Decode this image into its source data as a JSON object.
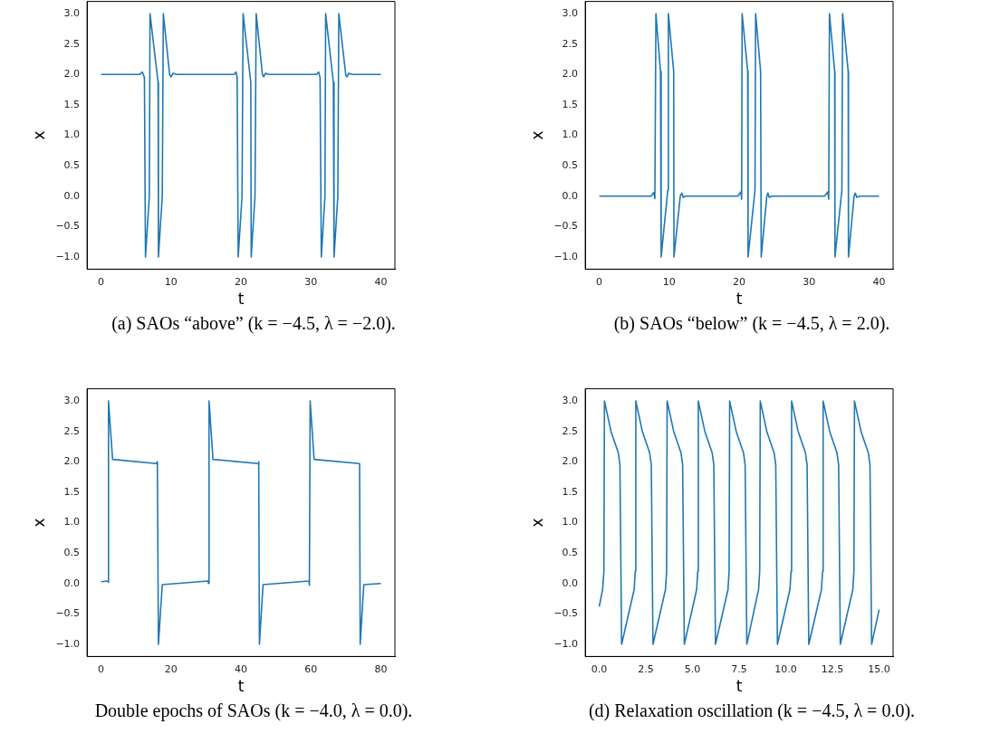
{
  "chart_data": [
    {
      "type": "line",
      "xlabel": "t",
      "ylabel": "x",
      "annotations": [
        "(a) SAOs “above” (k = −4.5, λ = −2.0)."
      ],
      "xlim": [
        -2,
        42
      ],
      "ylim": [
        -1.2,
        3.2
      ],
      "xticks": [
        0,
        10,
        20,
        30,
        40
      ],
      "yticks": [
        {
          "value": -1,
          "label": "−1.0"
        },
        {
          "value": -0.5,
          "label": "−0.5"
        },
        {
          "value": 0,
          "label": "0.0"
        },
        {
          "value": 0.5,
          "label": "0.5"
        },
        {
          "value": 1,
          "label": "1.0"
        },
        {
          "value": 1.5,
          "label": "1.5"
        },
        {
          "value": 2,
          "label": "2.0"
        },
        {
          "value": 2.5,
          "label": "2.5"
        },
        {
          "value": 3,
          "label": "3.0"
        }
      ],
      "x": [
        0,
        5.5,
        5.9,
        6.2,
        6.35,
        6.9,
        7.0,
        8.15,
        8.2,
        8.75,
        8.9,
        9.8,
        10.0,
        10.3,
        10.8,
        19.0,
        19.3,
        19.45,
        19.6,
        20.15,
        20.3,
        21.4,
        21.46,
        22.0,
        22.17,
        23.06,
        23.25,
        23.5,
        24.0,
        30.8,
        31.1,
        31.3,
        31.48,
        32.0,
        32.1,
        33.2,
        33.3,
        33.84,
        33.98,
        34.97,
        35.15,
        35.4,
        35.9,
        40
      ],
      "series": [
        {
          "color": "#1f77b4",
          "values": [
            2.0,
            2.0,
            2.04,
            1.95,
            -1.0,
            0.0,
            3.0,
            1.87,
            -1.0,
            0.0,
            3.0,
            2.0,
            1.96,
            2.02,
            2.0,
            2.0,
            2.04,
            1.95,
            -1.0,
            0.0,
            3.0,
            1.87,
            -1.0,
            0.0,
            3.0,
            2.0,
            1.96,
            2.02,
            2.0,
            2.0,
            2.04,
            1.95,
            -1.0,
            0.0,
            3.0,
            1.87,
            -1.0,
            0.0,
            3.0,
            2.0,
            1.96,
            2.02,
            2.0,
            2.0
          ]
        }
      ]
    },
    {
      "type": "line",
      "xlabel": "t",
      "ylabel": "x",
      "annotations": [
        "(b) SAOs “below” (k = −4.5, λ = 2.0)."
      ],
      "xlim": [
        -2,
        42
      ],
      "ylim": [
        -1.2,
        3.2
      ],
      "xticks": [
        0,
        10,
        20,
        30,
        40
      ],
      "yticks": [
        {
          "value": -1,
          "label": "−1.0"
        },
        {
          "value": -0.5,
          "label": "−0.5"
        },
        {
          "value": 0,
          "label": "0.0"
        },
        {
          "value": 0.5,
          "label": "0.5"
        },
        {
          "value": 1,
          "label": "1.0"
        },
        {
          "value": 1.5,
          "label": "1.5"
        },
        {
          "value": 2,
          "label": "2.0"
        },
        {
          "value": 2.5,
          "label": "2.5"
        },
        {
          "value": 3,
          "label": "3.0"
        }
      ],
      "x": [
        0,
        7.4,
        7.8,
        7.95,
        8.1,
        8.75,
        8.85,
        9.8,
        9.88,
        10.64,
        10.68,
        11.58,
        11.8,
        12.0,
        12.4,
        19.8,
        20.24,
        20.35,
        20.42,
        21.22,
        21.27,
        22.26,
        22.35,
        23.06,
        23.15,
        23.95,
        24.1,
        24.3,
        24.7,
        32.2,
        32.66,
        32.8,
        32.9,
        33.65,
        33.69,
        34.68,
        34.78,
        35.58,
        35.62,
        36.42,
        36.6,
        36.8,
        37.2,
        40
      ],
      "series": [
        {
          "color": "#1f77b4",
          "values": [
            0.0,
            0.0,
            0.06,
            -0.04,
            3.0,
            2.05,
            -1.0,
            0.1,
            3.0,
            2.05,
            -1.0,
            0.0,
            0.05,
            -0.02,
            0.0,
            0.0,
            0.07,
            -0.05,
            3.0,
            2.05,
            -1.0,
            0.1,
            3.0,
            2.05,
            -1.0,
            0.0,
            0.05,
            -0.02,
            0.0,
            0.0,
            0.07,
            -0.05,
            3.0,
            2.05,
            -1.0,
            0.1,
            3.0,
            2.05,
            -1.0,
            0.0,
            0.05,
            -0.02,
            0.0,
            0.0
          ]
        }
      ]
    },
    {
      "type": "line",
      "xlabel": "t",
      "ylabel": "x",
      "annotations": [
        "Double epochs of SAOs (k = −4.0, λ = 0.0)."
      ],
      "xlim": [
        -4,
        84
      ],
      "ylim": [
        -1.2,
        3.2
      ],
      "xticks": [
        0,
        20,
        40,
        60,
        80
      ],
      "yticks": [
        {
          "value": -1,
          "label": "−1.0"
        },
        {
          "value": -0.5,
          "label": "−0.5"
        },
        {
          "value": 0,
          "label": "0.0"
        },
        {
          "value": 0.5,
          "label": "0.5"
        },
        {
          "value": 1,
          "label": "1.0"
        },
        {
          "value": 1.5,
          "label": "1.5"
        },
        {
          "value": 2,
          "label": "2.0"
        },
        {
          "value": 2.5,
          "label": "2.5"
        },
        {
          "value": 3,
          "label": "3.0"
        }
      ],
      "x": [
        0,
        2.0,
        2.1,
        2.16,
        3.3,
        15.9,
        16.0,
        16.1,
        16.4,
        17.5,
        30.6,
        30.7,
        30.87,
        32.0,
        45.0,
        45.05,
        45.1,
        45.27,
        46.3,
        59.4,
        59.55,
        59.77,
        60.9,
        73.9,
        74.07,
        75.1,
        80
      ],
      "series": [
        {
          "color": "#1f77b4",
          "values": [
            0.03,
            0.04,
            0.02,
            3.0,
            2.04,
            1.97,
            2.0,
            1.95,
            -1.0,
            -0.02,
            0.04,
            0.0,
            3.0,
            2.04,
            1.97,
            2.0,
            1.95,
            -1.0,
            -0.02,
            0.04,
            -0.03,
            3.0,
            2.04,
            1.97,
            -1.0,
            -0.02,
            0.0
          ]
        }
      ]
    },
    {
      "type": "line",
      "xlabel": "t",
      "ylabel": "x",
      "annotations": [
        "(d) Relaxation oscillation (k = −4.5, λ = 0.0)."
      ],
      "xlim": [
        -0.75,
        15.75
      ],
      "ylim": [
        -1.2,
        3.2
      ],
      "xticks": [
        {
          "value": 0,
          "label": "0.0"
        },
        {
          "value": 2.5,
          "label": "2.5"
        },
        {
          "value": 5,
          "label": "5.0"
        },
        {
          "value": 7.5,
          "label": "7.5"
        },
        {
          "value": 10,
          "label": "10.0"
        },
        {
          "value": 12.5,
          "label": "12.5"
        },
        {
          "value": 15,
          "label": "15.0"
        }
      ],
      "yticks": [
        {
          "value": -1,
          "label": "−1.0"
        },
        {
          "value": -0.5,
          "label": "−0.5"
        },
        {
          "value": 0,
          "label": "0.0"
        },
        {
          "value": 0.5,
          "label": "0.5"
        },
        {
          "value": 1,
          "label": "1.0"
        },
        {
          "value": 1.5,
          "label": "1.5"
        },
        {
          "value": 2,
          "label": "2.0"
        },
        {
          "value": 2.5,
          "label": "2.5"
        },
        {
          "value": 3,
          "label": "3.0"
        }
      ],
      "x": [
        0,
        0.18,
        0.25,
        0.28,
        0.63,
        1.02,
        1.11,
        1.2,
        1.87,
        1.93,
        1.96,
        2.31,
        2.7,
        2.79,
        2.88,
        3.55,
        3.61,
        3.64,
        3.99,
        4.38,
        4.47,
        4.56,
        5.22,
        5.28,
        5.31,
        5.66,
        6.05,
        6.14,
        6.23,
        6.9,
        6.96,
        6.99,
        7.34,
        7.73,
        7.82,
        7.91,
        8.54,
        8.6,
        8.63,
        8.98,
        9.37,
        9.46,
        9.55,
        10.22,
        10.28,
        10.31,
        10.66,
        11.05,
        11.14,
        11.23,
        11.91,
        11.97,
        12.0,
        12.35,
        12.74,
        12.83,
        12.92,
        13.59,
        13.65,
        13.68,
        14.03,
        14.42,
        14.51,
        14.6,
        15.0
      ],
      "series": [
        {
          "color": "#1f77b4",
          "values": [
            -0.38,
            -0.1,
            0.2,
            3.0,
            2.5,
            2.15,
            1.95,
            -1.0,
            -0.1,
            0.2,
            3.0,
            2.5,
            2.15,
            1.95,
            -1.0,
            -0.1,
            0.2,
            3.0,
            2.5,
            2.15,
            1.95,
            -1.0,
            -0.1,
            0.2,
            3.0,
            2.5,
            2.15,
            1.95,
            -1.0,
            -0.1,
            0.2,
            3.0,
            2.5,
            2.15,
            1.95,
            -1.0,
            -0.1,
            0.2,
            3.0,
            2.5,
            2.15,
            1.95,
            -1.0,
            -0.1,
            0.2,
            3.0,
            2.5,
            2.15,
            1.95,
            -1.0,
            -0.1,
            0.2,
            3.0,
            2.5,
            2.15,
            1.95,
            -1.0,
            -0.1,
            0.2,
            3.0,
            2.5,
            2.15,
            1.95,
            -1.0,
            -0.43
          ]
        }
      ]
    }
  ]
}
